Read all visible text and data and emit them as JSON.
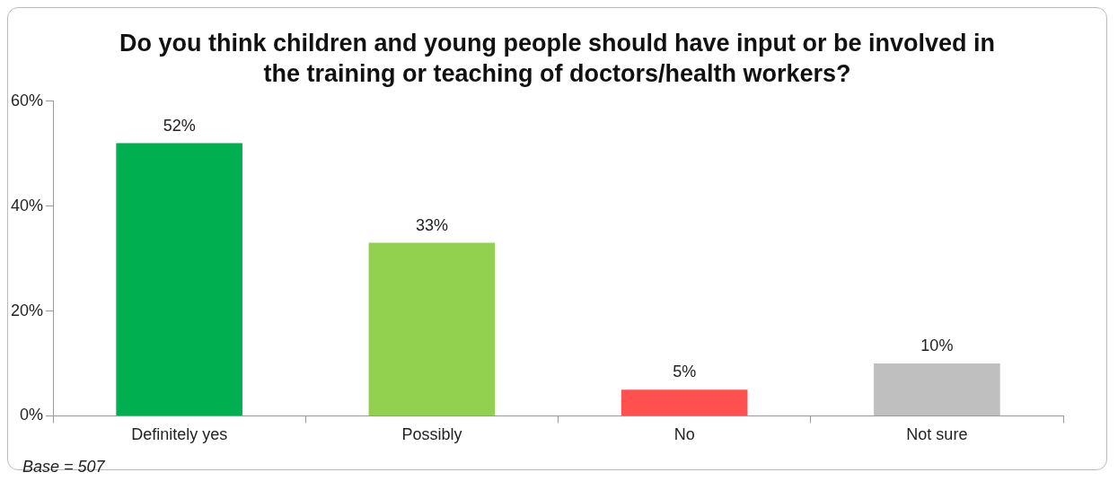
{
  "chart_data": {
    "type": "bar",
    "title": "Do you think children and young people should have input or be involved in the training or teaching of doctors/health workers?",
    "categories": [
      "Definitely yes",
      "Possibly",
      "No",
      "Not sure"
    ],
    "values": [
      52,
      33,
      5,
      10
    ],
    "colors": [
      "#00b050",
      "#92d050",
      "#ff5050",
      "#bfbfbf"
    ],
    "value_labels": [
      "52%",
      "33%",
      "5%",
      "10%"
    ],
    "ylim": [
      0,
      60
    ],
    "yticks": [
      {
        "value": 0,
        "label": "0%"
      },
      {
        "value": 20,
        "label": "20%"
      },
      {
        "value": 40,
        "label": "40%"
      },
      {
        "value": 60,
        "label": "60%"
      }
    ],
    "grid": false,
    "legend": false,
    "annotations": [
      "Base = 507"
    ]
  }
}
